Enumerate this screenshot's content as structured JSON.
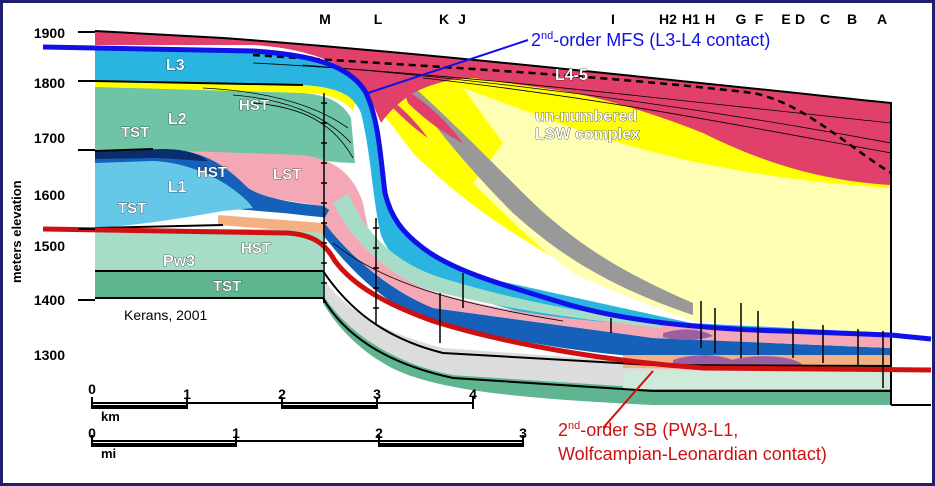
{
  "figure": {
    "y_axis_label": "meters elevation",
    "y_ticks": [
      "1900",
      "1800",
      "1700",
      "1600",
      "1500",
      "1400",
      "1300"
    ],
    "well_labels": [
      "M",
      "L",
      "K",
      "J",
      "I",
      "H2",
      "H1",
      "H",
      "G",
      "F",
      "E",
      "D",
      "C",
      "B",
      "A"
    ],
    "credit": "Kerans, 2001"
  },
  "units": {
    "L3": "L3",
    "L4_5": "L4-5",
    "L2": "L2",
    "L1": "L1",
    "Pw3": "Pw3",
    "lsw_line1": "un-numbered",
    "lsw_line2": "LSW complex"
  },
  "tracts": {
    "hst_l2": "HST",
    "tst_l2": "TST",
    "hst_l1": "HST",
    "lst_l1": "LST",
    "tst_l1": "TST",
    "hst_pw3": "HST",
    "tst_pw3": "TST"
  },
  "annotations": {
    "mfs_prefix": "2",
    "mfs_sup": "nd",
    "mfs_text": "-order MFS (L3-L4 contact)",
    "sb_prefix": "2",
    "sb_sup": "nd",
    "sb_line1": "-order SB (PW3-L1,",
    "sb_line2": "Wolfcampian-Leonardian contact)",
    "mfs_color": "#1010e8",
    "sb_color": "#d01010"
  },
  "scales": {
    "km_unit": "km",
    "km_ticks": [
      "0",
      "1",
      "2",
      "3",
      "4"
    ],
    "mi_unit": "mi",
    "mi_ticks": [
      "0",
      "1",
      "2",
      "3"
    ]
  }
}
